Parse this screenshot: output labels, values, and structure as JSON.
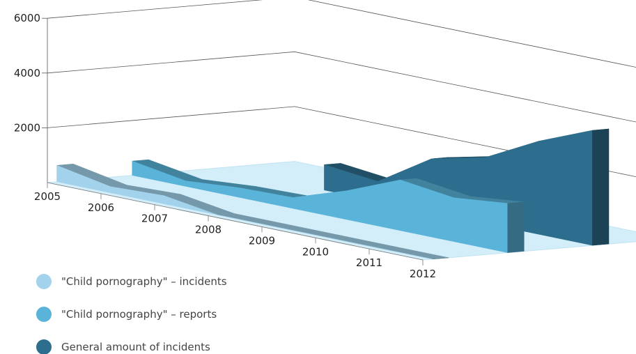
{
  "chart_data": {
    "type": "area",
    "subtype": "3d-stacked-ribbons",
    "categories": [
      "2005",
      "2006",
      "2007",
      "2008",
      "2009",
      "2010",
      "2011",
      "2012"
    ],
    "ylim": [
      0,
      6000
    ],
    "yticks": [
      "6000",
      "4000",
      "2000"
    ],
    "grid": true,
    "legend_position": "bottom-left",
    "series": [
      {
        "name": "\"Child pornography\" – incidents",
        "color": "#a3d3ec",
        "values": [
          600,
          230,
          300,
          0,
          0,
          0,
          0,
          0
        ]
      },
      {
        "name": "\"Child pornography\" – reports",
        "color": "#5ab4da",
        "values": [
          520,
          200,
          350,
          400,
          1050,
          1850,
          1600,
          1800
        ]
      },
      {
        "name": "General amount of incidents",
        "color": "#2d6e8e",
        "values": [
          null,
          null,
          930,
          720,
          1950,
          2400,
          3400,
          4200
        ]
      }
    ]
  }
}
